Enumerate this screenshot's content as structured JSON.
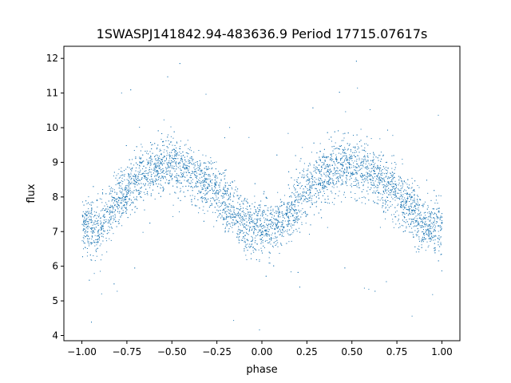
{
  "chart_data": {
    "type": "scatter",
    "title": "1SWASPJ141842.94-483636.9 Period 17715.07617s",
    "xlabel": "phase",
    "ylabel": "flux",
    "xlim": [
      -1.1,
      1.1
    ],
    "ylim": [
      3.85,
      12.35
    ],
    "xticks": [
      -1.0,
      -0.75,
      -0.5,
      -0.25,
      0.0,
      0.25,
      0.5,
      0.75,
      1.0
    ],
    "xtick_labels": [
      "−1.00",
      "−0.75",
      "−0.50",
      "−0.25",
      "0.00",
      "0.25",
      "0.50",
      "0.75",
      "1.00"
    ],
    "yticks": [
      4,
      5,
      6,
      7,
      8,
      9,
      10,
      11,
      12
    ],
    "ytick_labels": [
      "4",
      "5",
      "6",
      "7",
      "8",
      "9",
      "10",
      "11",
      "12"
    ],
    "grid": false,
    "legend": false,
    "point_color": "#1f77b4",
    "series": [
      {
        "x": [
          -1.0,
          -0.95,
          -0.9,
          -0.85,
          -0.8,
          -0.75,
          -0.7,
          -0.65,
          -0.6,
          -0.55,
          -0.5,
          -0.45,
          -0.4,
          -0.35,
          -0.3,
          -0.25,
          -0.2,
          -0.15,
          -0.1,
          -0.05,
          0.0,
          0.05,
          0.1,
          0.15,
          0.2,
          0.25,
          0.3,
          0.35,
          0.4,
          0.45,
          0.5,
          0.55,
          0.6,
          0.65,
          0.7,
          0.75,
          0.8,
          0.85,
          0.9,
          0.95,
          1.0
        ],
        "y": [
          7.2,
          7.1,
          7.2,
          7.5,
          7.9,
          8.2,
          8.5,
          8.7,
          8.85,
          8.95,
          8.95,
          8.85,
          8.7,
          8.5,
          8.3,
          8.1,
          7.8,
          7.45,
          7.2,
          7.1,
          7.2,
          7.1,
          7.2,
          7.5,
          7.9,
          8.2,
          8.5,
          8.7,
          8.85,
          8.95,
          8.95,
          8.85,
          8.7,
          8.5,
          8.3,
          8.1,
          7.8,
          7.45,
          7.2,
          7.1,
          7.2
        ],
        "scatter_spread": 0.4
      }
    ]
  }
}
